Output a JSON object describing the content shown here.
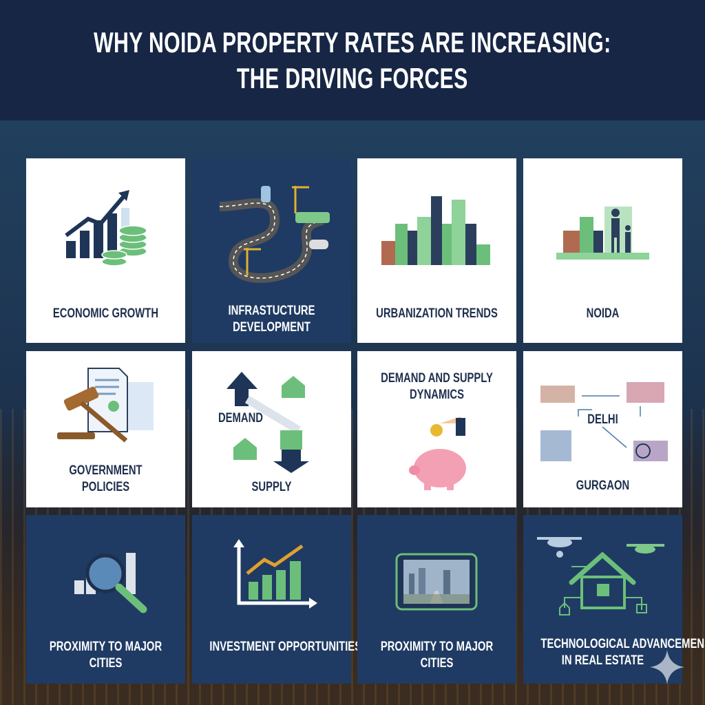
{
  "title_line1": "WHY NOIDA PROPERTY RATES ARE INCREASING:",
  "title_line2": "THE DRIVING FORCES",
  "tiles": [
    {
      "label": [
        "ECONOMIC GROWTH"
      ],
      "icon": "growth-chart-coins-icon"
    },
    {
      "label": [
        "INFRASTUCTURE",
        "DEVELOPMENT"
      ],
      "icon": "road-network-icon"
    },
    {
      "label": [
        "URBANIZATION TRENDS"
      ],
      "icon": "city-skyline-icon"
    },
    {
      "label": [
        "NOIDA"
      ],
      "icon": "family-city-icon"
    },
    {
      "label": [
        "GOVERNMENT",
        "POLICIES"
      ],
      "icon": "gavel-document-icon"
    },
    {
      "label": [
        "DEMAND",
        "SUPPLY"
      ],
      "icon": "demand-supply-arrows-icon"
    },
    {
      "label": [
        "DEMAND AND SUPPLY",
        "DYNAMICS"
      ],
      "icon": "piggy-bank-icon"
    },
    {
      "label": [
        "DELHI",
        "GURGAON"
      ],
      "icon": "city-connections-icon"
    },
    {
      "label": [
        "PROXIMITY TO MAJOR",
        "CITIES"
      ],
      "icon": "magnifier-chart-icon"
    },
    {
      "label": [
        "INVESTMENT OPPORTUNITIES"
      ],
      "icon": "investment-chart-icon"
    },
    {
      "label": [
        "PROXIMITY TO MAJOR",
        "CITIES"
      ],
      "icon": "tablet-city-icon"
    },
    {
      "label": [
        "TECHNOLOGICAL ADVANCEMENS",
        "IN REAL ESTATE"
      ],
      "icon": "smart-home-drone-icon"
    }
  ]
}
